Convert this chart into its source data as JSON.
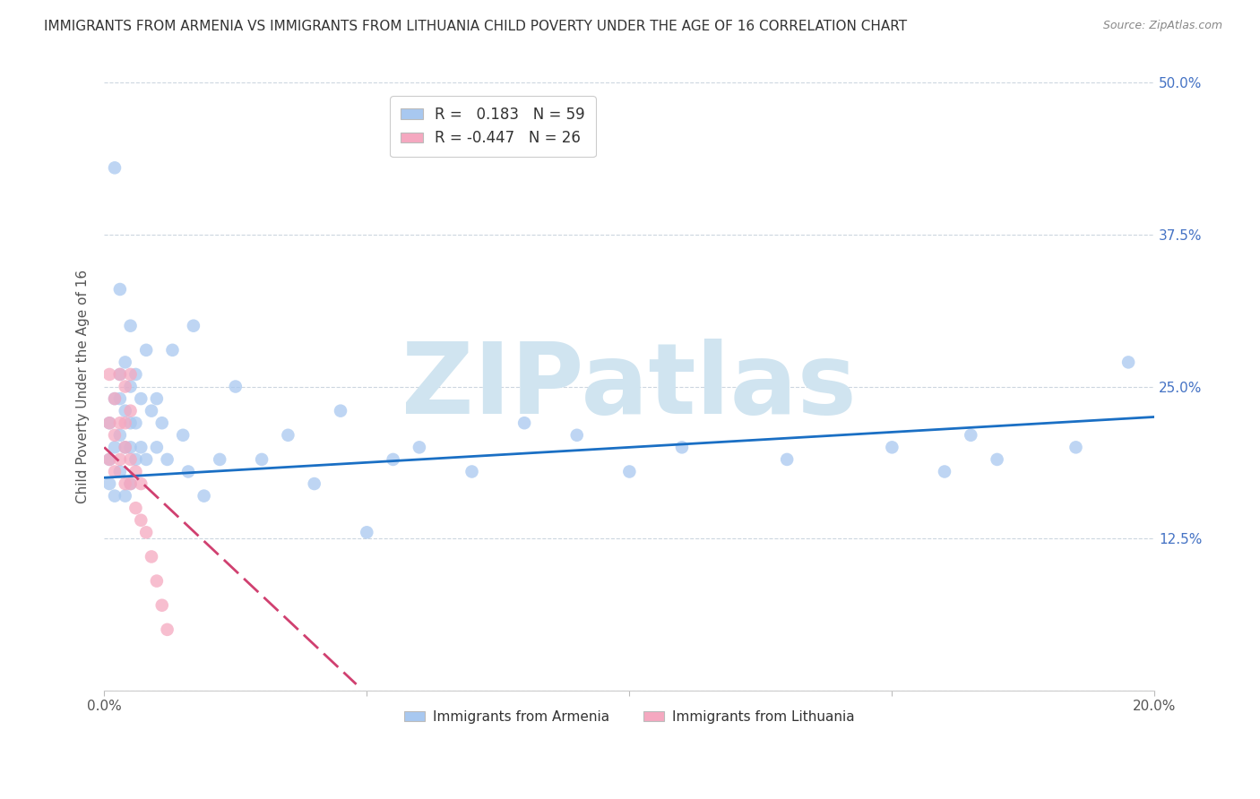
{
  "title": "IMMIGRANTS FROM ARMENIA VS IMMIGRANTS FROM LITHUANIA CHILD POVERTY UNDER THE AGE OF 16 CORRELATION CHART",
  "source": "Source: ZipAtlas.com",
  "ylabel": "Child Poverty Under the Age of 16",
  "xlim": [
    0.0,
    0.2
  ],
  "ylim": [
    0.0,
    0.5
  ],
  "xticks": [
    0.0,
    0.05,
    0.1,
    0.15,
    0.2
  ],
  "xticklabels": [
    "0.0%",
    "",
    "",
    "",
    "20.0%"
  ],
  "yticks": [
    0.0,
    0.125,
    0.25,
    0.375,
    0.5
  ],
  "right_yticklabels": [
    "",
    "12.5%",
    "25.0%",
    "37.5%",
    "50.0%"
  ],
  "legend1_label": "R =   0.183   N = 59",
  "legend2_label": "R = -0.447   N = 26",
  "series1_color": "#a8c8f0",
  "series2_color": "#f5a8c0",
  "line1_color": "#1a6fc4",
  "line2_color": "#d04070",
  "watermark": "ZIPatlas",
  "watermark_color": "#d0e4f0",
  "title_fontsize": 11,
  "axis_label_fontsize": 11,
  "tick_fontsize": 11,
  "series1_name": "Immigrants from Armenia",
  "series2_name": "Immigrants from Lithuania",
  "armenia_x": [
    0.001,
    0.001,
    0.001,
    0.002,
    0.002,
    0.002,
    0.002,
    0.003,
    0.003,
    0.003,
    0.003,
    0.003,
    0.004,
    0.004,
    0.004,
    0.004,
    0.005,
    0.005,
    0.005,
    0.005,
    0.005,
    0.006,
    0.006,
    0.006,
    0.007,
    0.007,
    0.008,
    0.008,
    0.009,
    0.01,
    0.01,
    0.011,
    0.012,
    0.013,
    0.015,
    0.016,
    0.017,
    0.019,
    0.022,
    0.025,
    0.03,
    0.035,
    0.04,
    0.045,
    0.05,
    0.055,
    0.06,
    0.07,
    0.08,
    0.09,
    0.1,
    0.11,
    0.13,
    0.15,
    0.16,
    0.165,
    0.17,
    0.185,
    0.195
  ],
  "armenia_y": [
    0.17,
    0.19,
    0.22,
    0.16,
    0.2,
    0.24,
    0.43,
    0.18,
    0.21,
    0.24,
    0.26,
    0.33,
    0.16,
    0.2,
    0.23,
    0.27,
    0.17,
    0.2,
    0.22,
    0.25,
    0.3,
    0.19,
    0.22,
    0.26,
    0.2,
    0.24,
    0.19,
    0.28,
    0.23,
    0.2,
    0.24,
    0.22,
    0.19,
    0.28,
    0.21,
    0.18,
    0.3,
    0.16,
    0.19,
    0.25,
    0.19,
    0.21,
    0.17,
    0.23,
    0.13,
    0.19,
    0.2,
    0.18,
    0.22,
    0.21,
    0.18,
    0.2,
    0.19,
    0.2,
    0.18,
    0.21,
    0.19,
    0.2,
    0.27
  ],
  "lithuania_x": [
    0.001,
    0.001,
    0.001,
    0.002,
    0.002,
    0.002,
    0.003,
    0.003,
    0.003,
    0.004,
    0.004,
    0.004,
    0.004,
    0.005,
    0.005,
    0.005,
    0.005,
    0.006,
    0.006,
    0.007,
    0.007,
    0.008,
    0.009,
    0.01,
    0.011,
    0.012
  ],
  "lithuania_y": [
    0.19,
    0.22,
    0.26,
    0.18,
    0.21,
    0.24,
    0.19,
    0.22,
    0.26,
    0.17,
    0.2,
    0.22,
    0.25,
    0.17,
    0.19,
    0.23,
    0.26,
    0.15,
    0.18,
    0.14,
    0.17,
    0.13,
    0.11,
    0.09,
    0.07,
    0.05
  ],
  "armenia_line_x": [
    0.0,
    0.2
  ],
  "armenia_line_y": [
    0.175,
    0.225
  ],
  "lithuania_line_x": [
    0.0,
    0.048
  ],
  "lithuania_line_y": [
    0.2,
    0.005
  ]
}
